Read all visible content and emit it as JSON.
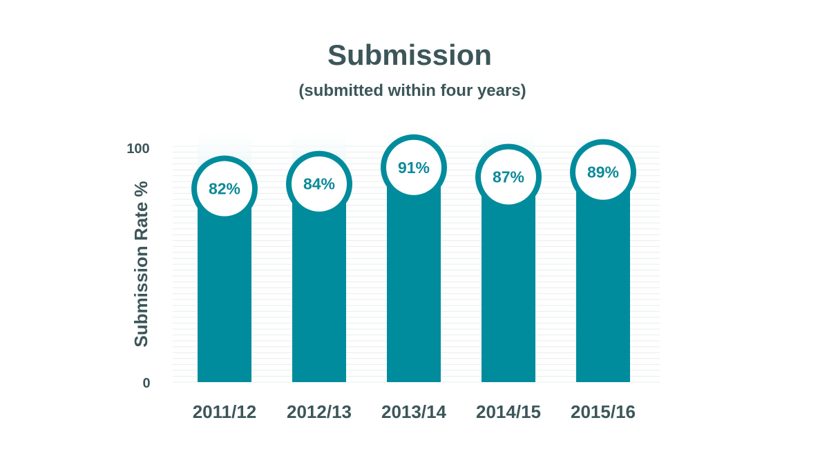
{
  "chart_data": {
    "type": "bar",
    "title": "Submission",
    "subtitle": "(submitted within four years)",
    "ylabel": "Submission Rate %",
    "xlabel": "",
    "ylim": [
      0,
      100
    ],
    "y_ticks": [
      "0",
      "100"
    ],
    "categories": [
      "2011/12",
      "2012/13",
      "2013/14",
      "2014/15",
      "2015/16"
    ],
    "values": [
      82,
      84,
      91,
      87,
      89
    ],
    "value_labels": [
      "82%",
      "84%",
      "91%",
      "87%",
      "89%"
    ],
    "grid": true
  },
  "colors": {
    "bar": "#008c9c",
    "text_dark": "#3c5659",
    "label": "#0b8a98",
    "grid": "#e8ecee",
    "track": "#dff1f4"
  }
}
